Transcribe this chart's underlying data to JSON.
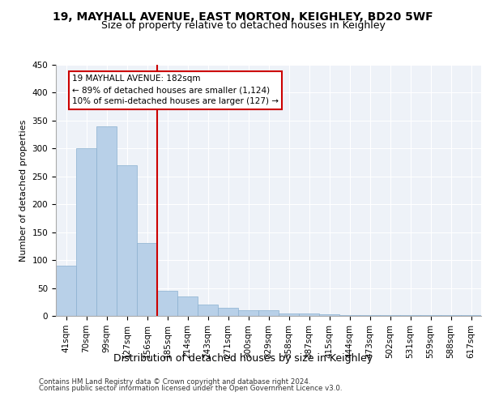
{
  "title1": "19, MAYHALL AVENUE, EAST MORTON, KEIGHLEY, BD20 5WF",
  "title2": "Size of property relative to detached houses in Keighley",
  "xlabel": "Distribution of detached houses by size in Keighley",
  "ylabel": "Number of detached properties",
  "footer1": "Contains HM Land Registry data © Crown copyright and database right 2024.",
  "footer2": "Contains public sector information licensed under the Open Government Licence v3.0.",
  "annotation_line1": "19 MAYHALL AVENUE: 182sqm",
  "annotation_line2": "← 89% of detached houses are smaller (1,124)",
  "annotation_line3": "10% of semi-detached houses are larger (127) →",
  "bar_color": "#b8d0e8",
  "bar_edge_color": "#8ab0d0",
  "vline_color": "#cc0000",
  "categories": [
    "41sqm",
    "70sqm",
    "99sqm",
    "127sqm",
    "156sqm",
    "185sqm",
    "214sqm",
    "243sqm",
    "271sqm",
    "300sqm",
    "329sqm",
    "358sqm",
    "387sqm",
    "415sqm",
    "444sqm",
    "473sqm",
    "502sqm",
    "531sqm",
    "559sqm",
    "588sqm",
    "617sqm"
  ],
  "values": [
    90,
    300,
    340,
    270,
    130,
    45,
    35,
    20,
    15,
    10,
    10,
    5,
    5,
    3,
    2,
    2,
    1,
    1,
    1,
    1,
    1
  ],
  "vline_x_index": 5,
  "ylim": [
    0,
    450
  ],
  "yticks": [
    0,
    50,
    100,
    150,
    200,
    250,
    300,
    350,
    400,
    450
  ],
  "background_color": "#eef2f8",
  "grid_color": "#ffffff",
  "title1_fontsize": 10,
  "title2_fontsize": 9,
  "ylabel_fontsize": 8,
  "xlabel_fontsize": 9,
  "tick_fontsize": 7.5,
  "annotation_fontsize": 7.5,
  "footer_fontsize": 6.2
}
